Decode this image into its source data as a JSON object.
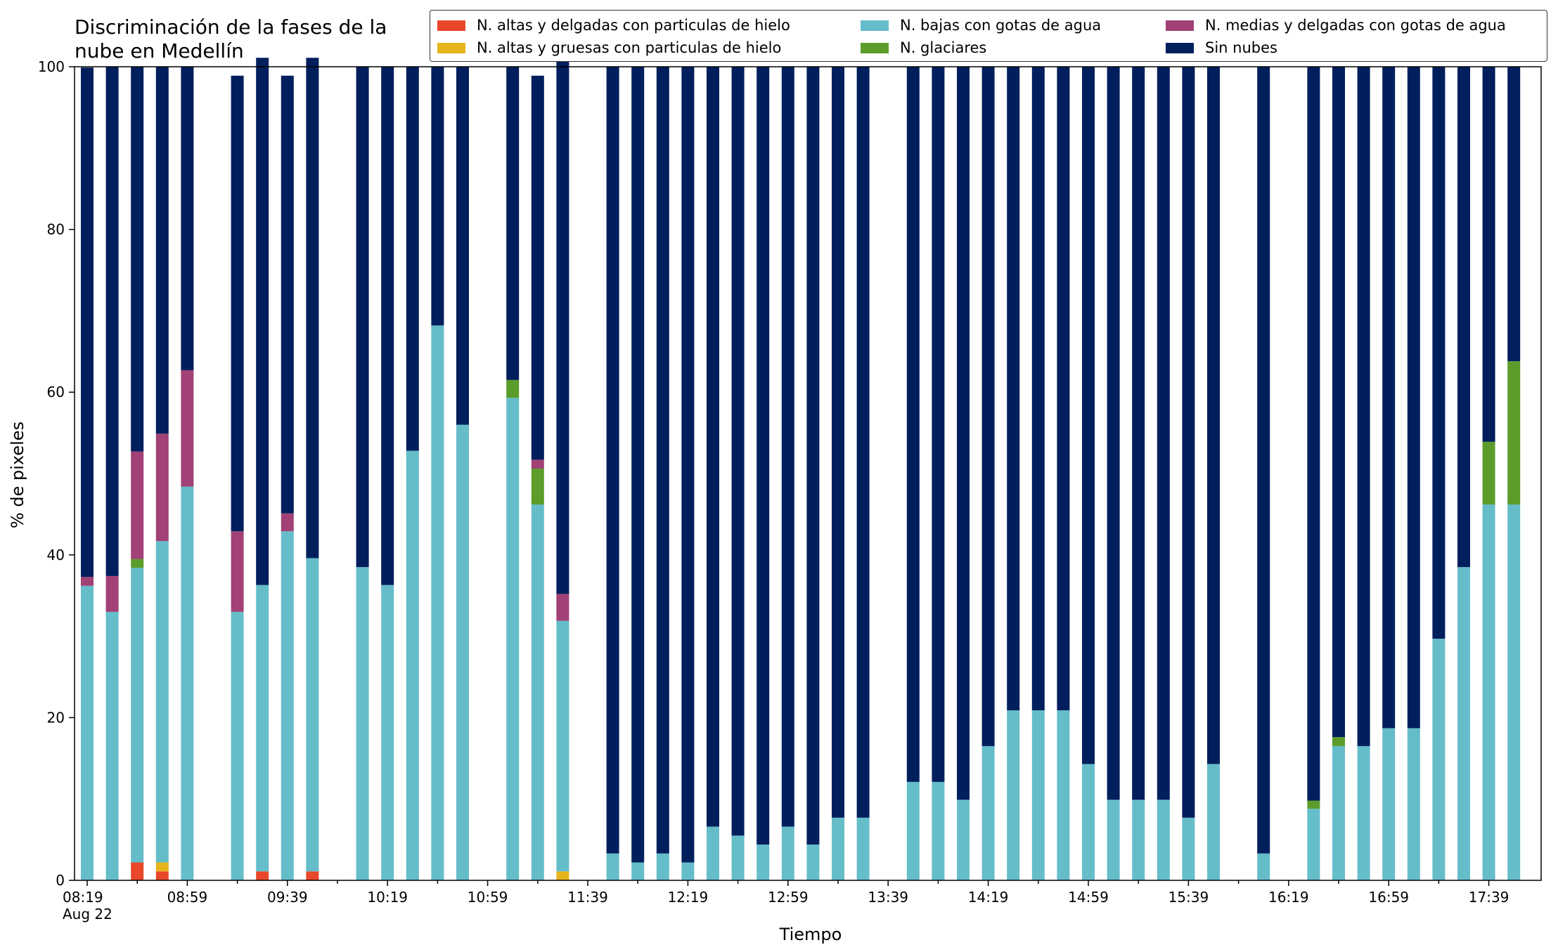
{
  "chart_data": {
    "type": "bar",
    "stacked": true,
    "title": "Discriminación de la fases de la\nnube en Medellín",
    "xlabel": "Tiempo",
    "ylabel": "% de pixeles",
    "ylim": [
      0,
      100
    ],
    "yticks": [
      "0",
      "20",
      "40",
      "60",
      "80",
      "100"
    ],
    "xtick_labels": [
      "08:19\nAug 22",
      "08:59",
      "09:39",
      "10:19",
      "10:59",
      "11:39",
      "12:19",
      "12:59",
      "13:39",
      "14:19",
      "14:59",
      "15:39",
      "16:19",
      "16:59",
      "17:39"
    ],
    "legend_position": "top-right",
    "categories": [
      "08:19",
      "08:29",
      "08:39",
      "08:49",
      "08:59",
      "09:09",
      "09:19",
      "09:29",
      "09:39",
      "09:49",
      "09:59",
      "10:09",
      "10:19",
      "10:29",
      "10:39",
      "10:49",
      "10:59",
      "11:09",
      "11:19",
      "11:29",
      "11:39",
      "11:49",
      "11:59",
      "12:09",
      "12:19",
      "12:29",
      "12:39",
      "12:49",
      "12:59",
      "13:09",
      "13:19",
      "13:29",
      "13:39",
      "13:49",
      "13:59",
      "14:09",
      "14:19",
      "14:29",
      "14:39",
      "14:49",
      "14:59",
      "15:09",
      "15:19",
      "15:29",
      "15:39",
      "15:49",
      "15:59",
      "16:09",
      "16:19",
      "16:29",
      "16:39",
      "16:49",
      "16:59",
      "17:09",
      "17:19",
      "17:29",
      "17:39",
      "17:49"
    ],
    "series": [
      {
        "name": "N. altas y delgadas con particulas de hielo",
        "color": "#e8472a",
        "values": [
          0,
          0,
          2.2,
          1.1,
          0,
          null,
          0,
          1.1,
          0,
          1.1,
          0,
          null,
          0,
          0,
          0,
          0,
          0,
          null,
          0,
          0,
          0,
          null,
          0,
          0,
          0,
          0,
          0,
          0,
          0,
          0,
          0,
          0,
          0,
          0,
          null,
          0,
          0,
          0,
          0,
          0,
          0,
          0,
          0,
          0,
          0,
          0,
          0,
          0,
          null,
          0,
          null,
          0,
          0,
          0,
          0,
          0,
          0,
          0
        ]
      },
      {
        "name": "N. altas y gruesas con particulas de hielo",
        "color": "#e6b51d",
        "values": [
          0,
          0,
          0,
          1.1,
          0,
          null,
          0,
          0,
          0,
          0,
          0,
          null,
          0,
          0,
          0,
          0,
          0,
          null,
          0,
          1.1,
          0,
          null,
          0,
          0,
          0,
          0,
          0,
          0,
          0,
          0,
          0,
          0,
          0,
          0,
          null,
          0,
          0,
          0,
          0,
          0,
          0,
          0,
          0,
          0,
          0,
          0,
          0,
          0,
          null,
          0,
          null,
          0,
          0,
          0,
          0,
          0,
          0,
          0
        ]
      },
      {
        "name": "N. bajas con gotas de agua",
        "color": "#66bdca",
        "values": [
          36.2,
          33.0,
          36.2,
          39.5,
          48.4,
          null,
          33.0,
          35.2,
          42.9,
          38.5,
          null,
          38.5,
          36.3,
          52.8,
          68.2,
          56.0,
          null,
          59.3,
          46.2,
          30.8,
          null,
          3.3,
          2.2,
          3.3,
          2.2,
          6.6,
          5.5,
          4.4,
          6.6,
          4.4,
          7.7,
          7.7,
          null,
          12.1,
          12.1,
          9.9,
          16.5,
          20.9,
          20.9,
          20.9,
          14.3,
          9.9,
          9.9,
          9.9,
          7.7,
          14.3,
          null,
          3.3,
          null,
          8.8,
          16.5,
          16.5,
          18.7,
          18.7,
          29.7,
          38.5,
          46.2,
          46.2
        ]
      },
      {
        "name": "N. glaciares",
        "color": "#5b9c2b",
        "values": [
          0,
          0,
          1.1,
          0,
          0,
          null,
          0,
          0,
          0,
          0,
          null,
          0,
          0,
          0,
          0,
          0,
          null,
          2.2,
          4.4,
          0,
          null,
          0,
          0,
          0,
          0,
          0,
          0,
          0,
          0,
          0,
          0,
          0,
          null,
          0,
          0,
          0,
          0,
          0,
          0,
          0,
          0,
          0,
          0,
          0,
          0,
          0,
          null,
          0,
          null,
          1.0,
          1.1,
          0,
          0,
          0,
          0,
          0,
          7.7,
          17.6
        ]
      },
      {
        "name": "N. medias y delgadas con gotas de agua",
        "color": "#a14176",
        "values": [
          1.1,
          4.4,
          13.2,
          13.2,
          14.3,
          null,
          9.9,
          0,
          2.2,
          0,
          null,
          0,
          0,
          0,
          0,
          0,
          null,
          0,
          1.1,
          3.3,
          null,
          0,
          0,
          0,
          0,
          0,
          0,
          0,
          0,
          0,
          0,
          0,
          null,
          0,
          0,
          0,
          0,
          0,
          0,
          0,
          0,
          0,
          0,
          0,
          0,
          0,
          null,
          0,
          null,
          0,
          0,
          0,
          0,
          0,
          0,
          0,
          0,
          0
        ]
      },
      {
        "name": "Sin nubes",
        "color": "#001f5c",
        "values": [
          62.6,
          62.6,
          47.3,
          45.1,
          37.3,
          null,
          56.0,
          64.8,
          53.8,
          61.5,
          null,
          61.5,
          63.7,
          47.2,
          31.8,
          44.0,
          null,
          38.5,
          47.2,
          65.9,
          null,
          96.7,
          97.8,
          96.7,
          97.8,
          93.4,
          94.5,
          95.6,
          93.4,
          95.6,
          92.3,
          92.3,
          null,
          87.9,
          87.9,
          90.1,
          83.5,
          79.1,
          79.1,
          79.1,
          85.7,
          90.1,
          90.1,
          90.1,
          92.3,
          85.7,
          null,
          96.7,
          null,
          90.2,
          82.4,
          83.5,
          81.3,
          81.3,
          70.3,
          61.5,
          46.1,
          36.2
        ]
      }
    ]
  }
}
